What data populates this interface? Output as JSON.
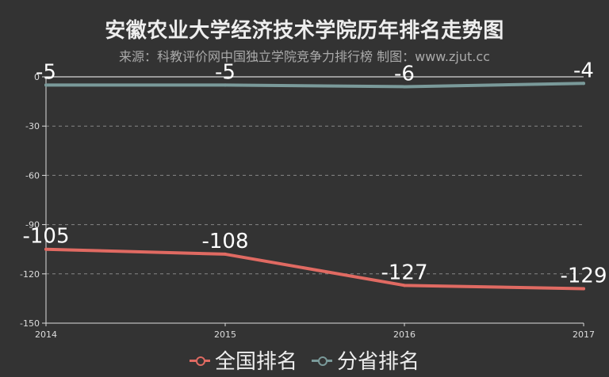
{
  "title": "安徽农业大学经济技术学院历年排名走势图",
  "subtitle": "来源：科教评价网中国独立学院竞争力排行榜 制图：www.zjut.cc",
  "legend": {
    "items": [
      {
        "label": "全国排名",
        "color": "#e06a62"
      },
      {
        "label": "分省排名",
        "color": "#7a9a9a"
      }
    ]
  },
  "chart_data": {
    "type": "line",
    "title": "安徽农业大学经济技术学院历年排名走势图",
    "subtitle": "来源：科教评价网中国独立学院竞争力排行榜 制图：www.zjut.cc",
    "x": [
      "2014",
      "2015",
      "2016",
      "2017"
    ],
    "ylim": [
      -150,
      0
    ],
    "yticks": [
      0,
      -30,
      -60,
      -90,
      -120,
      -150
    ],
    "ytick_labels": [
      "0",
      "-30",
      "-60",
      "-90",
      "-120",
      "-150"
    ],
    "grid": true,
    "legend_position": "bottom",
    "series": [
      {
        "name": "全国排名",
        "values": [
          -105,
          -108,
          -127,
          -129
        ],
        "labels": [
          "-105",
          "-108",
          "-127",
          "-129"
        ],
        "color": "#e06a62"
      },
      {
        "name": "分省排名",
        "values": [
          -5,
          -5,
          -6,
          -4
        ],
        "labels": [
          "-5",
          "-5",
          "-6",
          "-4"
        ],
        "color": "#7a9a9a"
      }
    ]
  }
}
